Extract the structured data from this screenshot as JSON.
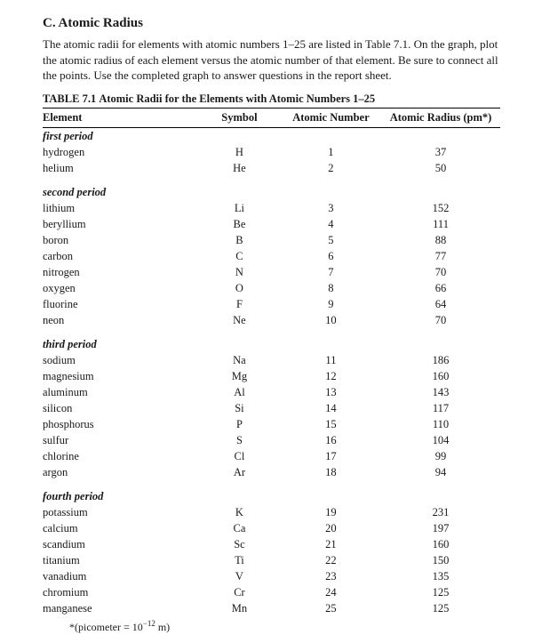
{
  "section": {
    "heading": "C. Atomic Radius",
    "intro": "The atomic radii for elements with atomic numbers 1–25 are listed in Table 7.1. On the graph, plot the atomic radius of each element versus the atomic number of that element. Be sure to connect all the points. Use the completed graph to answer questions in the report sheet."
  },
  "table": {
    "label": "TABLE 7.1",
    "title": "Atomic Radii for the Elements with Atomic Numbers 1–25",
    "headers": {
      "element": "Element",
      "symbol": "Symbol",
      "atomic_number": "Atomic Number",
      "atomic_radius": "Atomic Radius (pm*)"
    },
    "periods": [
      {
        "label": "first period",
        "rows": [
          {
            "element": "hydrogen",
            "symbol": "H",
            "number": "1",
            "radius": "37"
          },
          {
            "element": "helium",
            "symbol": "He",
            "number": "2",
            "radius": "50"
          }
        ]
      },
      {
        "label": "second period",
        "rows": [
          {
            "element": "lithium",
            "symbol": "Li",
            "number": "3",
            "radius": "152"
          },
          {
            "element": "beryllium",
            "symbol": "Be",
            "number": "4",
            "radius": "111"
          },
          {
            "element": "boron",
            "symbol": "B",
            "number": "5",
            "radius": "88"
          },
          {
            "element": "carbon",
            "symbol": "C",
            "number": "6",
            "radius": "77"
          },
          {
            "element": "nitrogen",
            "symbol": "N",
            "number": "7",
            "radius": "70"
          },
          {
            "element": "oxygen",
            "symbol": "O",
            "number": "8",
            "radius": "66"
          },
          {
            "element": "fluorine",
            "symbol": "F",
            "number": "9",
            "radius": "64"
          },
          {
            "element": "neon",
            "symbol": "Ne",
            "number": "10",
            "radius": "70"
          }
        ]
      },
      {
        "label": "third period",
        "rows": [
          {
            "element": "sodium",
            "symbol": "Na",
            "number": "11",
            "radius": "186"
          },
          {
            "element": "magnesium",
            "symbol": "Mg",
            "number": "12",
            "radius": "160"
          },
          {
            "element": "aluminum",
            "symbol": "Al",
            "number": "13",
            "radius": "143"
          },
          {
            "element": "silicon",
            "symbol": "Si",
            "number": "14",
            "radius": "117"
          },
          {
            "element": "phosphorus",
            "symbol": "P",
            "number": "15",
            "radius": "110"
          },
          {
            "element": "sulfur",
            "symbol": "S",
            "number": "16",
            "radius": "104"
          },
          {
            "element": "chlorine",
            "symbol": "Cl",
            "number": "17",
            "radius": "99"
          },
          {
            "element": "argon",
            "symbol": "Ar",
            "number": "18",
            "radius": "94"
          }
        ]
      },
      {
        "label": "fourth period",
        "rows": [
          {
            "element": "potassium",
            "symbol": "K",
            "number": "19",
            "radius": "231"
          },
          {
            "element": "calcium",
            "symbol": "Ca",
            "number": "20",
            "radius": "197"
          },
          {
            "element": "scandium",
            "symbol": "Sc",
            "number": "21",
            "radius": "160"
          },
          {
            "element": "titanium",
            "symbol": "Ti",
            "number": "22",
            "radius": "150"
          },
          {
            "element": "vanadium",
            "symbol": "V",
            "number": "23",
            "radius": "135"
          },
          {
            "element": "chromium",
            "symbol": "Cr",
            "number": "24",
            "radius": "125"
          },
          {
            "element": "manganese",
            "symbol": "Mn",
            "number": "25",
            "radius": "125"
          }
        ]
      }
    ],
    "footnote_prefix": "*(picometer = 10",
    "footnote_exp": "−12",
    "footnote_suffix": " m)"
  }
}
